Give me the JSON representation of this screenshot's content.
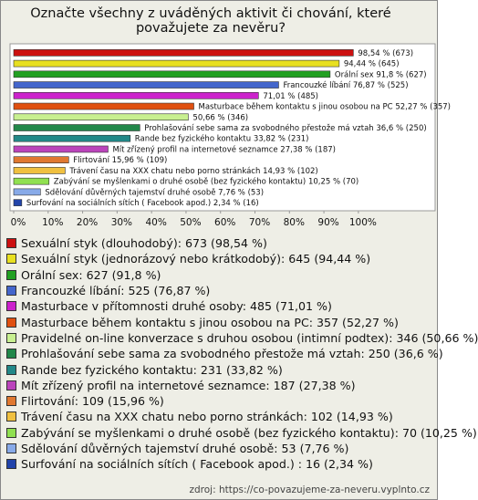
{
  "chart_data": {
    "type": "bar",
    "orientation": "horizontal",
    "title": "Označte všechny z uváděných aktivit či chování, které považujete za nevěru?",
    "values": [
      98.54,
      94.44,
      91.8,
      76.87,
      71.01,
      52.27,
      50.66,
      36.6,
      33.82,
      27.38,
      15.96,
      14.93,
      10.25,
      7.76,
      2.34
    ],
    "value_labels": [
      "98,54 % (673)",
      "94,44 % (645)",
      "Orální sex 91,8 % (627)",
      "Francouzké líbání 76,87 % (525)",
      "71,01 % (485)",
      "Masturbace během kontaktu s jinou osobou na PC 52,27 % (357)",
      "50,66 % (346)",
      "Prohlašování sebe sama za svobodného přestože má vztah 36,6 % (250)",
      "Rande bez fyzického kontaktu 33,82 % (231)",
      "Mít zřízený profil na internetové seznamce 27,38 % (187)",
      "Flirtování 15,96 % (109)",
      "Trávení času na XXX chatu nebo porno stránkách 14,93 % (102)",
      "Zabývání se myšlenkami o druhé osobě (bez fyzického kontaktu) 10,25 % (70)",
      "Sdělování důvěrných tajemství druhé osobě 7,76 % (53)",
      "Surfování na sociálních sítích ( Facebook apod.) 2,34 % (16)"
    ],
    "colors": [
      "#cc1111",
      "#e8e020",
      "#22a022",
      "#4466cc",
      "#cc22cc",
      "#e05010",
      "#c8f090",
      "#22884a",
      "#228888",
      "#bb44bb",
      "#e07830",
      "#f0c040",
      "#90e050",
      "#88aae8",
      "#2244aa"
    ],
    "legend": [
      "Sexuální styk (dlouhodobý): 673 (98,54 %)",
      "Sexuální styk (jednorázový nebo krátkodobý): 645 (94,44 %)",
      "Orální sex: 627 (91,8 %)",
      "Francouzké líbání: 525 (76,87 %)",
      "Masturbace v přítomnosti druhé osoby: 485 (71,01 %)",
      "Masturbace během kontaktu s jinou osobou na PC: 357 (52,27 %)",
      "Pravidelné on-line konverzace s druhou osobou (intimní podtex): 346 (50,66 %)",
      "Prohlašování sebe sama za svobodného přestože má vztah: 250 (36,6 %)",
      "Rande bez fyzického kontaktu: 231 (33,82 %)",
      "Mít zřízený profil na internetové seznamce: 187 (27,38 %)",
      "Flirtování: 109 (15,96 %)",
      "Trávení času na XXX chatu nebo porno stránkách: 102 (14,93 %)",
      "Zabývání se myšlenkami o druhé osobě (bez fyzického kontaktu): 70 (10,25 %)",
      "Sdělování důvěrných tajemství druhé osobě: 53 (7,76 %)",
      "Surfování na sociálních sítích ( Facebook apod.) : 16 (2,34 %)"
    ],
    "xlim": [
      0,
      122
    ],
    "xticks": [
      {
        "value": 0,
        "label": "0%"
      },
      {
        "value": 10,
        "label": "10%"
      },
      {
        "value": 20,
        "label": "20%"
      },
      {
        "value": 30,
        "label": "30%"
      },
      {
        "value": 40,
        "label": "40%"
      },
      {
        "value": 50,
        "label": "50%"
      },
      {
        "value": 60,
        "label": "60%"
      },
      {
        "value": 70,
        "label": "70%"
      },
      {
        "value": 80,
        "label": "80%"
      },
      {
        "value": 90,
        "label": "90%"
      },
      {
        "value": 100,
        "label": "100%"
      }
    ],
    "grid": false,
    "source": "zdroj: https://co-povazujeme-za-neveru.vyplnto.cz"
  }
}
